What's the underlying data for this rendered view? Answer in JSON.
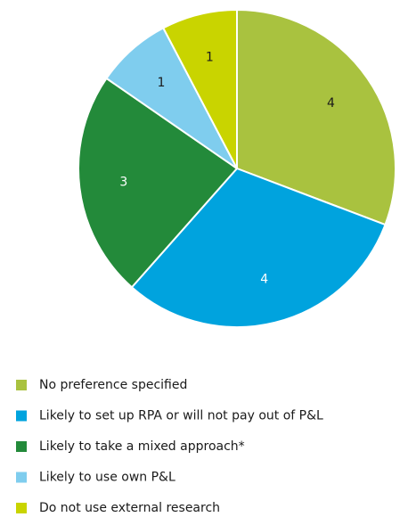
{
  "chart_data": {
    "type": "pie",
    "categories": [
      "No preference specified",
      "Likely to set up RPA or will not pay out of P&L",
      "Likely to take a mixed approach*",
      "Likely to use own P&L",
      "Do not use external research"
    ],
    "values": [
      4,
      4,
      3,
      1,
      1
    ],
    "colors": [
      "#a9c23f",
      "#00a3de",
      "#238a3a",
      "#7fcdee",
      "#c9d400"
    ],
    "legend": "bottom"
  }
}
